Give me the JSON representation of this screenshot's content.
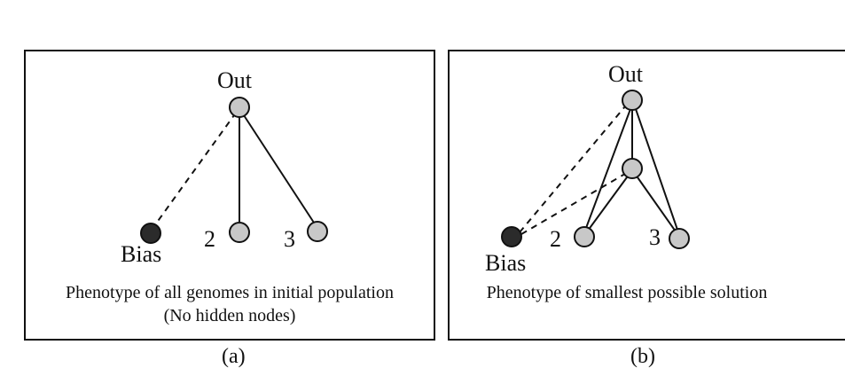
{
  "panels": [
    {
      "id": "a",
      "sublabel": "(a)",
      "caption_line1": "Phenotype of all genomes in initial population",
      "caption_line2": "(No hidden nodes)",
      "node_labels": {
        "out": "Out",
        "bias": "Bias",
        "input2": "2",
        "input3": "3"
      },
      "hidden_nodes": 0,
      "connections": [
        {
          "from": "bias",
          "to": "out",
          "style": "dashed"
        },
        {
          "from": "input2",
          "to": "out",
          "style": "solid"
        },
        {
          "from": "input3",
          "to": "out",
          "style": "solid"
        }
      ]
    },
    {
      "id": "b",
      "sublabel": "(b)",
      "caption_line1": "Phenotype of smallest possible solution",
      "node_labels": {
        "out": "Out",
        "bias": "Bias",
        "input2": "2",
        "input3": "3"
      },
      "hidden_nodes": 1,
      "connections": [
        {
          "from": "bias",
          "to": "out",
          "style": "dashed"
        },
        {
          "from": "bias",
          "to": "hidden",
          "style": "dashed"
        },
        {
          "from": "input2",
          "to": "out",
          "style": "solid"
        },
        {
          "from": "input2",
          "to": "hidden",
          "style": "solid"
        },
        {
          "from": "input3",
          "to": "out",
          "style": "solid"
        },
        {
          "from": "input3",
          "to": "hidden",
          "style": "solid"
        },
        {
          "from": "hidden",
          "to": "out",
          "style": "solid"
        }
      ]
    }
  ],
  "colors": {
    "node_fill": "#c8c8c8",
    "bias_fill": "#2b2b2b",
    "stroke": "#111111",
    "background": "#ffffff"
  }
}
